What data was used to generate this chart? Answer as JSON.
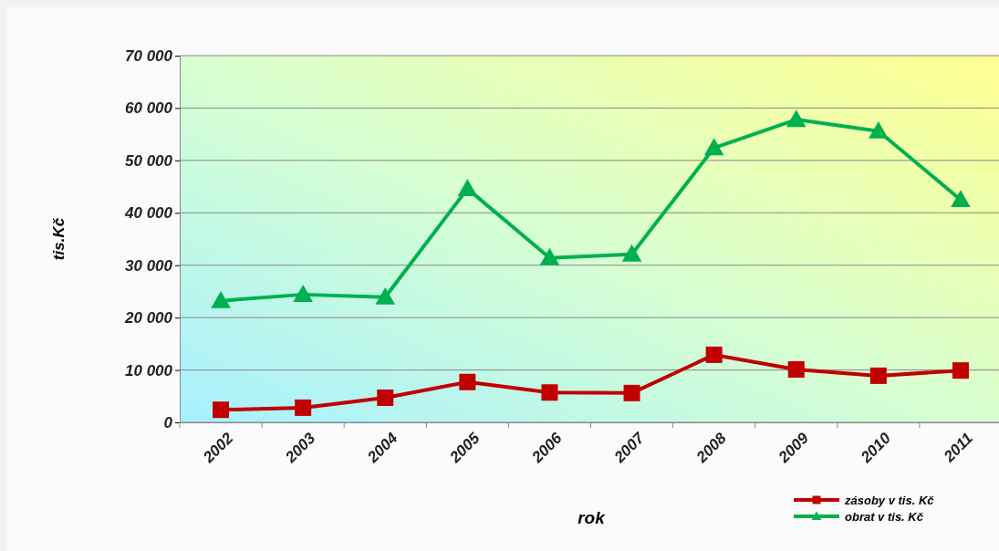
{
  "chart_data": {
    "type": "line",
    "xlabel": "rok",
    "ylabel": "tis.Kč",
    "categories": [
      "2002",
      "2003",
      "2004",
      "2005",
      "2006",
      "2007",
      "2008",
      "2009",
      "2010",
      "2011"
    ],
    "series": [
      {
        "name": "zásoby v tis. Kč",
        "color": "#c00000",
        "marker": "square",
        "values": [
          2400,
          2800,
          4700,
          7700,
          5700,
          5600,
          12900,
          10100,
          8900,
          9900
        ]
      },
      {
        "name": "obrat v tis. Kč",
        "color": "#00b050",
        "marker": "triangle",
        "values": [
          23200,
          24400,
          23900,
          44600,
          31400,
          32100,
          52400,
          57800,
          55600,
          42500
        ]
      }
    ],
    "ylim": [
      0,
      70000
    ],
    "yticks": [
      {
        "value": 0,
        "label": "0"
      },
      {
        "value": 10000,
        "label": "10 000"
      },
      {
        "value": 20000,
        "label": "20 000"
      },
      {
        "value": 30000,
        "label": "30 000"
      },
      {
        "value": 40000,
        "label": "40 000"
      },
      {
        "value": 50000,
        "label": "50 000"
      },
      {
        "value": 60000,
        "label": "60 000"
      },
      {
        "value": 70000,
        "label": "70 000"
      }
    ],
    "grid": "y",
    "legend": "bottom right",
    "line_style": "solid"
  }
}
